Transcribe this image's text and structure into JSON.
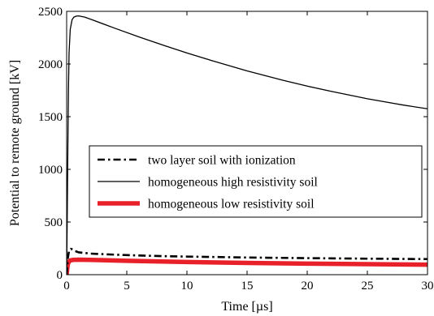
{
  "chart_data": {
    "type": "line",
    "xlabel": "Time [µs]",
    "ylabel": "Potential to remote ground [kV]",
    "xlim": [
      0,
      30
    ],
    "ylim": [
      0,
      2500
    ],
    "xticks": [
      0,
      5,
      10,
      15,
      20,
      25,
      30
    ],
    "yticks": [
      0,
      500,
      1000,
      1500,
      2000,
      2500
    ],
    "grid": false,
    "legend_position": "center-right",
    "series": [
      {
        "name": "two layer soil with ionization",
        "style": "dash-dot",
        "color": "#000000",
        "x": [
          0,
          0.1,
          0.2,
          0.35,
          0.5,
          0.7,
          1,
          2,
          4,
          6,
          8,
          10,
          15,
          20,
          25,
          30
        ],
        "y": [
          0,
          160,
          225,
          245,
          240,
          225,
          212,
          200,
          190,
          182,
          176,
          172,
          163,
          157,
          152,
          148
        ]
      },
      {
        "name": "homogeneous high resistivity soil",
        "style": "solid",
        "color": "#000000",
        "x": [
          0,
          0.05,
          0.1,
          0.15,
          0.2,
          0.3,
          0.45,
          0.6,
          0.8,
          1,
          1.5,
          2,
          4,
          6,
          8,
          10,
          12,
          15,
          18,
          20,
          22,
          25,
          28,
          30
        ],
        "y": [
          0,
          550,
          1200,
          1750,
          2100,
          2330,
          2420,
          2445,
          2455,
          2457,
          2445,
          2425,
          2340,
          2258,
          2180,
          2105,
          2035,
          1935,
          1845,
          1790,
          1740,
          1670,
          1610,
          1575
        ]
      },
      {
        "name": "homogeneous low resistivity soil",
        "style": "solid-thick",
        "color": "#e8202a",
        "x": [
          0,
          0.05,
          0.1,
          0.2,
          0.3,
          0.5,
          1,
          2,
          5,
          10,
          15,
          20,
          25,
          30
        ],
        "y": [
          0,
          60,
          100,
          125,
          135,
          140,
          142,
          140,
          132,
          120,
          112,
          105,
          100,
          95
        ]
      }
    ]
  }
}
